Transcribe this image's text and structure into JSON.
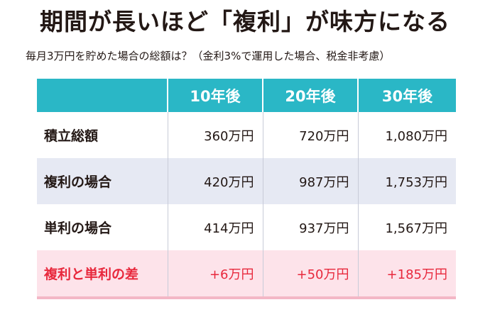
{
  "title": "期間が長いほど「複利」が味方になる",
  "subtitle": "毎月3万円を貯めた場合の総額は？（金利3%で運用した場合、税金非考慮）",
  "table": {
    "headers": [
      "",
      "10年後",
      "20年後",
      "30年後"
    ],
    "rows": [
      {
        "label": "積立総額",
        "values": [
          "360万円",
          "720万円",
          "1,080万円"
        ]
      },
      {
        "label": "複利の場合",
        "values": [
          "420万円",
          "987万円",
          "1,753万円"
        ]
      },
      {
        "label": "単利の場合",
        "values": [
          "414万円",
          "937万円",
          "1,567万円"
        ]
      },
      {
        "label": "複利と単利の差",
        "values": [
          "+6万円",
          "+50万円",
          "+185万円"
        ]
      }
    ]
  },
  "colors": {
    "header_bg": "#2ab7c6",
    "row_alt_bg": "#e6e9f3",
    "highlight_bg": "#fde3ea",
    "highlight_text": "#e8283c"
  }
}
